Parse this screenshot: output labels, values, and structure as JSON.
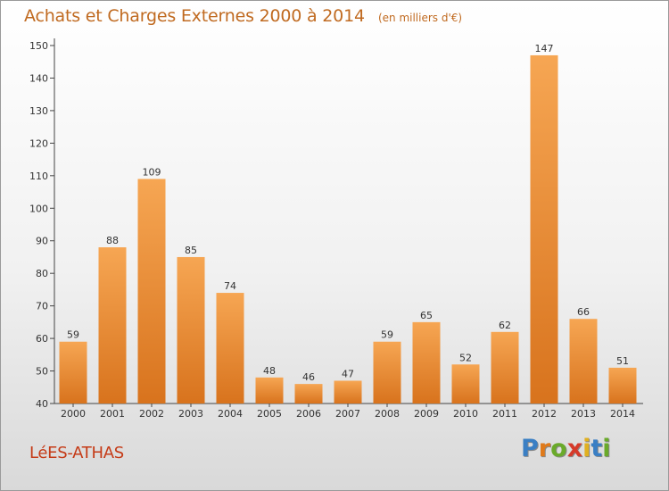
{
  "title": "Achats et Charges Externes 2000 à 2014",
  "unit_note": "(en milliers d'€)",
  "commune": "LéES-ATHAS",
  "brand": {
    "letters": [
      "P",
      "r",
      "o",
      "x",
      "i",
      "t",
      "i"
    ],
    "colors": [
      "#3a7fc4",
      "#e07a1a",
      "#6aaa2a",
      "#d63a2a",
      "#e0b020",
      "#3a7fc4",
      "#6aaa2a"
    ]
  },
  "colors": {
    "bar_top": "#f6a653",
    "bar_bottom": "#d8731d",
    "title": "#c06a20",
    "commune": "#c53a16"
  },
  "chart_data": {
    "type": "bar",
    "title": "Achats et Charges Externes 2000 à 2014",
    "ylabel": "en milliers d'€",
    "xlabel": "",
    "categories": [
      "2000",
      "2001",
      "2002",
      "2003",
      "2004",
      "2005",
      "2006",
      "2007",
      "2008",
      "2009",
      "2010",
      "2011",
      "2012",
      "2013",
      "2014"
    ],
    "values": [
      59,
      88,
      109,
      85,
      74,
      48,
      46,
      47,
      59,
      65,
      52,
      62,
      147,
      66,
      51
    ],
    "ylim": [
      40,
      150
    ],
    "yticks": [
      40,
      50,
      60,
      70,
      80,
      90,
      100,
      110,
      120,
      130,
      140,
      150
    ],
    "grid": false,
    "legend": "none"
  }
}
